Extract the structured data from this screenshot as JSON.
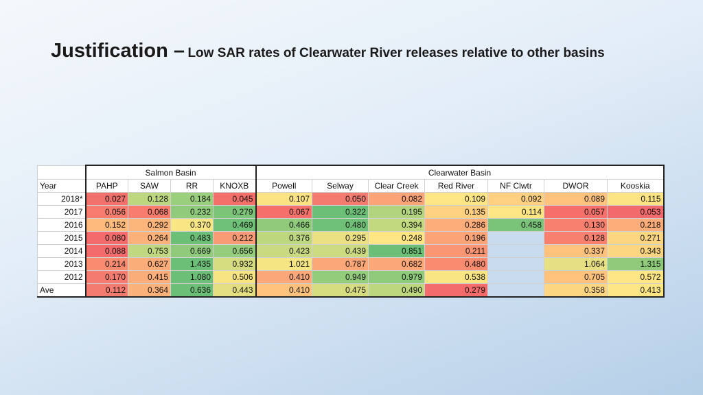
{
  "title": {
    "main": "Justification –",
    "sub": "Low SAR rates of Clearwater River releases relative to other basins"
  },
  "table": {
    "groups": {
      "salmon": "Salmon Basin",
      "clearwater": "Clearwater Basin"
    },
    "year_header": "Year",
    "columns": [
      "PAHP",
      "SAW",
      "RR",
      "KNOXB",
      "Powell",
      "Selway",
      "Clear Creek",
      "Red River",
      "NF Clwtr",
      "DWOR",
      "Kooskia"
    ],
    "rows": [
      {
        "label": "2018*",
        "values": [
          "0.027",
          "0.128",
          "0.184",
          "0.045",
          "0.107",
          "0.050",
          "0.082",
          "0.109",
          "0.092",
          "0.089",
          "0.115"
        ],
        "colors": [
          "#f0716b",
          "#bcd77e",
          "#9acf7c",
          "#f36f6a",
          "#fbe383",
          "#f47b6f",
          "#fba477",
          "#fee684",
          "#fed07f",
          "#fec27c",
          "#fce482"
        ]
      },
      {
        "label": "2017",
        "values": [
          "0.056",
          "0.068",
          "0.232",
          "0.279",
          "0.067",
          "0.322",
          "0.195",
          "0.135",
          "0.114",
          "0.057",
          "0.053"
        ],
        "colors": [
          "#f77c6e",
          "#f77c6e",
          "#8fcb7b",
          "#7cc478",
          "#f56f6b",
          "#6bbf76",
          "#b2d47e",
          "#fed07f",
          "#fee684",
          "#f5706b",
          "#f26a6b"
        ]
      },
      {
        "label": "2016",
        "values": [
          "0.152",
          "0.292",
          "0.370",
          "0.469",
          "0.466",
          "0.480",
          "0.394",
          "0.286",
          "0.458",
          "0.130",
          "0.218"
        ],
        "colors": [
          "#fdba7b",
          "#fbb47a",
          "#f8e583",
          "#70c178",
          "#8fcb7b",
          "#70c178",
          "#c3d980",
          "#fcad79",
          "#79c478",
          "#f7806f",
          "#fcad79"
        ]
      },
      {
        "label": "2015",
        "values": [
          "0.080",
          "0.264",
          "0.483",
          "0.212",
          "0.376",
          "0.295",
          "0.248",
          "0.196",
          "",
          "0.128",
          "0.271"
        ],
        "colors": [
          "#f36b6b",
          "#fbb27a",
          "#6bbf76",
          "#f99b74",
          "#bcd77e",
          "#ebe182",
          "#fee684",
          "#fba477",
          "#c9dcef",
          "#f7806f",
          "#fcd680"
        ]
      },
      {
        "label": "2014",
        "values": [
          "0.088",
          "0.753",
          "0.669",
          "0.656",
          "0.423",
          "0.439",
          "0.851",
          "0.211",
          "",
          "0.337",
          "0.343"
        ],
        "colors": [
          "#f36b6b",
          "#c1d880",
          "#8fcb7b",
          "#95cd7c",
          "#c9da80",
          "#cddb80",
          "#6bbf76",
          "#fa9673",
          "#c9dcef",
          "#fec27c",
          "#fcd680"
        ]
      },
      {
        "label": "2013",
        "values": [
          "0.214",
          "0.627",
          "1.435",
          "0.932",
          "1.021",
          "0.787",
          "0.682",
          "0.480",
          "",
          "1.064",
          "1.315"
        ],
        "colors": [
          "#f88b70",
          "#fbad79",
          "#6bbf76",
          "#d6dd81",
          "#f6e583",
          "#fca777",
          "#fca777",
          "#f88b70",
          "#c9dcef",
          "#e6e082",
          "#8fcb7b"
        ]
      },
      {
        "label": "2012",
        "values": [
          "0.170",
          "0.415",
          "1.080",
          "0.506",
          "0.410",
          "0.949",
          "0.979",
          "0.538",
          "",
          "0.705",
          "0.572"
        ],
        "colors": [
          "#f47b6f",
          "#fbad79",
          "#6bbf76",
          "#f7e483",
          "#fca777",
          "#93cd7b",
          "#8fcb7b",
          "#f9e683",
          "#c9dcef",
          "#fec27c",
          "#fee684"
        ]
      },
      {
        "label": "Ave",
        "values": [
          "0.112",
          "0.364",
          "0.636",
          "0.443",
          "0.410",
          "0.475",
          "0.490",
          "0.279",
          "",
          "0.358",
          "0.413"
        ],
        "colors": [
          "#f47b6f",
          "#fbb27a",
          "#6bbf76",
          "#e3df81",
          "#fec27c",
          "#d6dd81",
          "#bcd77e",
          "#f36b6b",
          "#c9dcef",
          "#fcd680",
          "#fee684"
        ]
      }
    ]
  }
}
